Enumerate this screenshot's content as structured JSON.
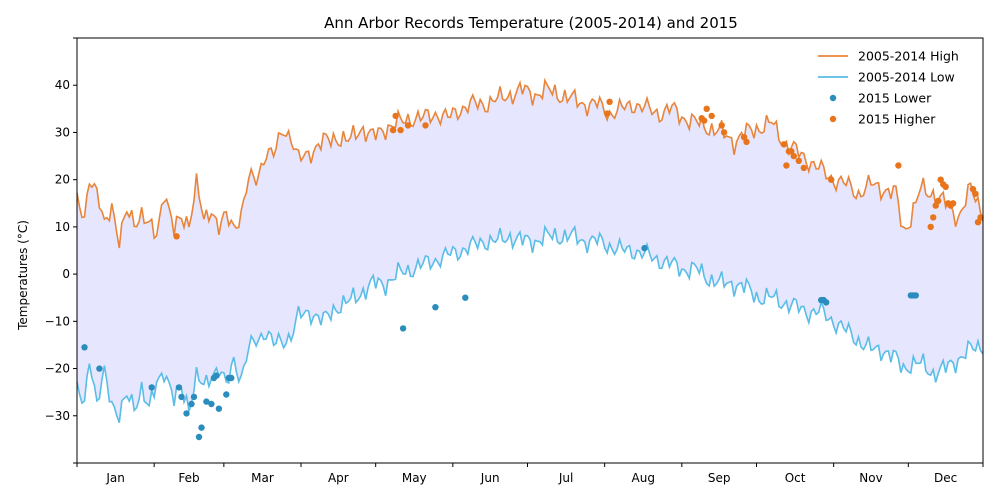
{
  "chart_data": {
    "type": "line",
    "title": "Ann Arbor Records Temperature (2005-2014) and 2015",
    "xlabel": "",
    "ylabel": "Temperatures (°C)",
    "xlim": [
      1,
      365
    ],
    "ylim": [
      -40,
      50
    ],
    "yticks": [
      -30,
      -20,
      -10,
      0,
      10,
      20,
      30,
      40
    ],
    "month_labels": [
      "Jan",
      "Feb",
      "Mar",
      "Apr",
      "May",
      "Jun",
      "Jul",
      "Aug",
      "Sep",
      "Oct",
      "Nov",
      "Dec"
    ],
    "month_start_days": [
      1,
      32,
      60,
      91,
      121,
      152,
      182,
      213,
      244,
      274,
      305,
      335,
      365
    ],
    "legend_position": "top-right",
    "fill_between": {
      "color": "#e6e6ff"
    },
    "series": [
      {
        "name": "2005-2014 High",
        "kind": "line",
        "color": "#e8853b",
        "anchors_x": [
          1,
          4,
          6,
          9,
          12,
          15,
          18,
          21,
          24,
          27,
          30,
          33,
          36,
          40,
          43,
          46,
          49,
          52,
          55,
          58,
          61,
          64,
          67,
          70,
          73,
          77,
          80,
          84,
          87,
          90,
          95,
          100,
          105,
          110,
          115,
          120,
          125,
          130,
          135,
          140,
          145,
          150,
          155,
          160,
          165,
          170,
          175,
          180,
          185,
          190,
          195,
          200,
          205,
          210,
          215,
          220,
          225,
          230,
          235,
          240,
          245,
          250,
          255,
          260,
          265,
          270,
          275,
          280,
          285,
          290,
          295,
          300,
          305,
          310,
          315,
          320,
          325,
          330,
          333,
          336,
          340,
          345,
          350,
          355,
          360,
          365
        ],
        "anchors_y": [
          15,
          12,
          21,
          17,
          10,
          15,
          7,
          13,
          11,
          13,
          10,
          8,
          18,
          9,
          12,
          11,
          19,
          11,
          14,
          10,
          12,
          10,
          13,
          20,
          20,
          26,
          25,
          31,
          29,
          24,
          26,
          28,
          29,
          28,
          31,
          29,
          31,
          32,
          33,
          33,
          34,
          33,
          35,
          36,
          36,
          37,
          38,
          39,
          38,
          39,
          38,
          37,
          36,
          36,
          34,
          35,
          36,
          35,
          34,
          35,
          33,
          32,
          31,
          30,
          28,
          30,
          31,
          32,
          28,
          26,
          24,
          22,
          20,
          19,
          17,
          19,
          18,
          17,
          9,
          12,
          18,
          17,
          15,
          12,
          18,
          13
        ]
      },
      {
        "name": "2005-2014 Low",
        "kind": "line",
        "color": "#5abde6",
        "anchors_x": [
          1,
          4,
          6,
          9,
          12,
          15,
          18,
          21,
          24,
          27,
          30,
          33,
          36,
          40,
          43,
          46,
          49,
          52,
          55,
          58,
          61,
          64,
          67,
          70,
          73,
          77,
          80,
          84,
          87,
          90,
          95,
          100,
          105,
          110,
          115,
          120,
          125,
          130,
          135,
          140,
          145,
          150,
          155,
          160,
          165,
          170,
          175,
          180,
          185,
          190,
          195,
          200,
          205,
          210,
          215,
          220,
          225,
          230,
          235,
          240,
          245,
          250,
          255,
          260,
          265,
          270,
          275,
          280,
          285,
          290,
          295,
          300,
          305,
          310,
          315,
          320,
          325,
          330,
          333,
          336,
          340,
          345,
          350,
          355,
          360,
          365
        ],
        "anchors_y": [
          -25,
          -27,
          -17,
          -28,
          -21,
          -27,
          -30,
          -26,
          -28,
          -24,
          -29,
          -23,
          -20,
          -27,
          -24,
          -28,
          -22,
          -24,
          -21,
          -20,
          -24,
          -18,
          -22,
          -16,
          -14,
          -12,
          -15,
          -14,
          -13,
          -9,
          -8,
          -10,
          -7,
          -6,
          -4,
          -2,
          -2,
          0,
          1,
          2,
          3,
          4,
          5,
          6,
          7,
          7,
          8,
          7,
          7,
          8,
          8,
          8,
          7,
          7,
          6,
          5,
          5,
          4,
          3,
          2,
          1,
          1,
          -1,
          -2,
          -2,
          -3,
          -5,
          -5,
          -6,
          -7,
          -8,
          -8,
          -10,
          -12,
          -14,
          -16,
          -16,
          -18,
          -20,
          -19,
          -19,
          -21,
          -20,
          -18,
          -16,
          -15
        ]
      },
      {
        "name": "2015 Lower",
        "kind": "scatter",
        "color": "#2b8cbe",
        "x": [
          4,
          10,
          31,
          42,
          43,
          45,
          47,
          48,
          50,
          51,
          53,
          55,
          56,
          57,
          58,
          61,
          62,
          63,
          132,
          145,
          157,
          229,
          300,
          301,
          302,
          336,
          337,
          338
        ],
        "y": [
          -15.5,
          -20,
          -24,
          -24,
          -26,
          -29.5,
          -27.5,
          -26,
          -34.5,
          -32.5,
          -27,
          -27.5,
          -22,
          -21.5,
          -28.5,
          -25.5,
          -22,
          -22,
          -11.5,
          -7,
          -5,
          5.5,
          -5.5,
          -5.5,
          -6,
          -4.5,
          -4.5,
          -4.5
        ]
      },
      {
        "name": "2015 Higher",
        "kind": "scatter",
        "color": "#e8741b",
        "x": [
          41,
          128,
          129,
          131,
          134,
          141,
          214,
          215,
          252,
          253,
          254,
          256,
          260,
          261,
          269,
          270,
          285,
          286,
          287,
          288,
          289,
          291,
          293,
          304,
          331,
          344,
          345,
          346,
          347,
          348,
          349,
          350,
          351,
          352,
          353,
          361,
          362,
          363,
          364
        ],
        "y": [
          8,
          30.5,
          33.5,
          30.5,
          31.5,
          31.5,
          34,
          36.5,
          33,
          32.5,
          35,
          33.5,
          31.5,
          30,
          29,
          28,
          27.5,
          23,
          26,
          26,
          25,
          24,
          22.5,
          20,
          23,
          10,
          12,
          14.5,
          15.5,
          20,
          19,
          18.5,
          15,
          14.5,
          15,
          18,
          17,
          11,
          12
        ]
      }
    ]
  }
}
